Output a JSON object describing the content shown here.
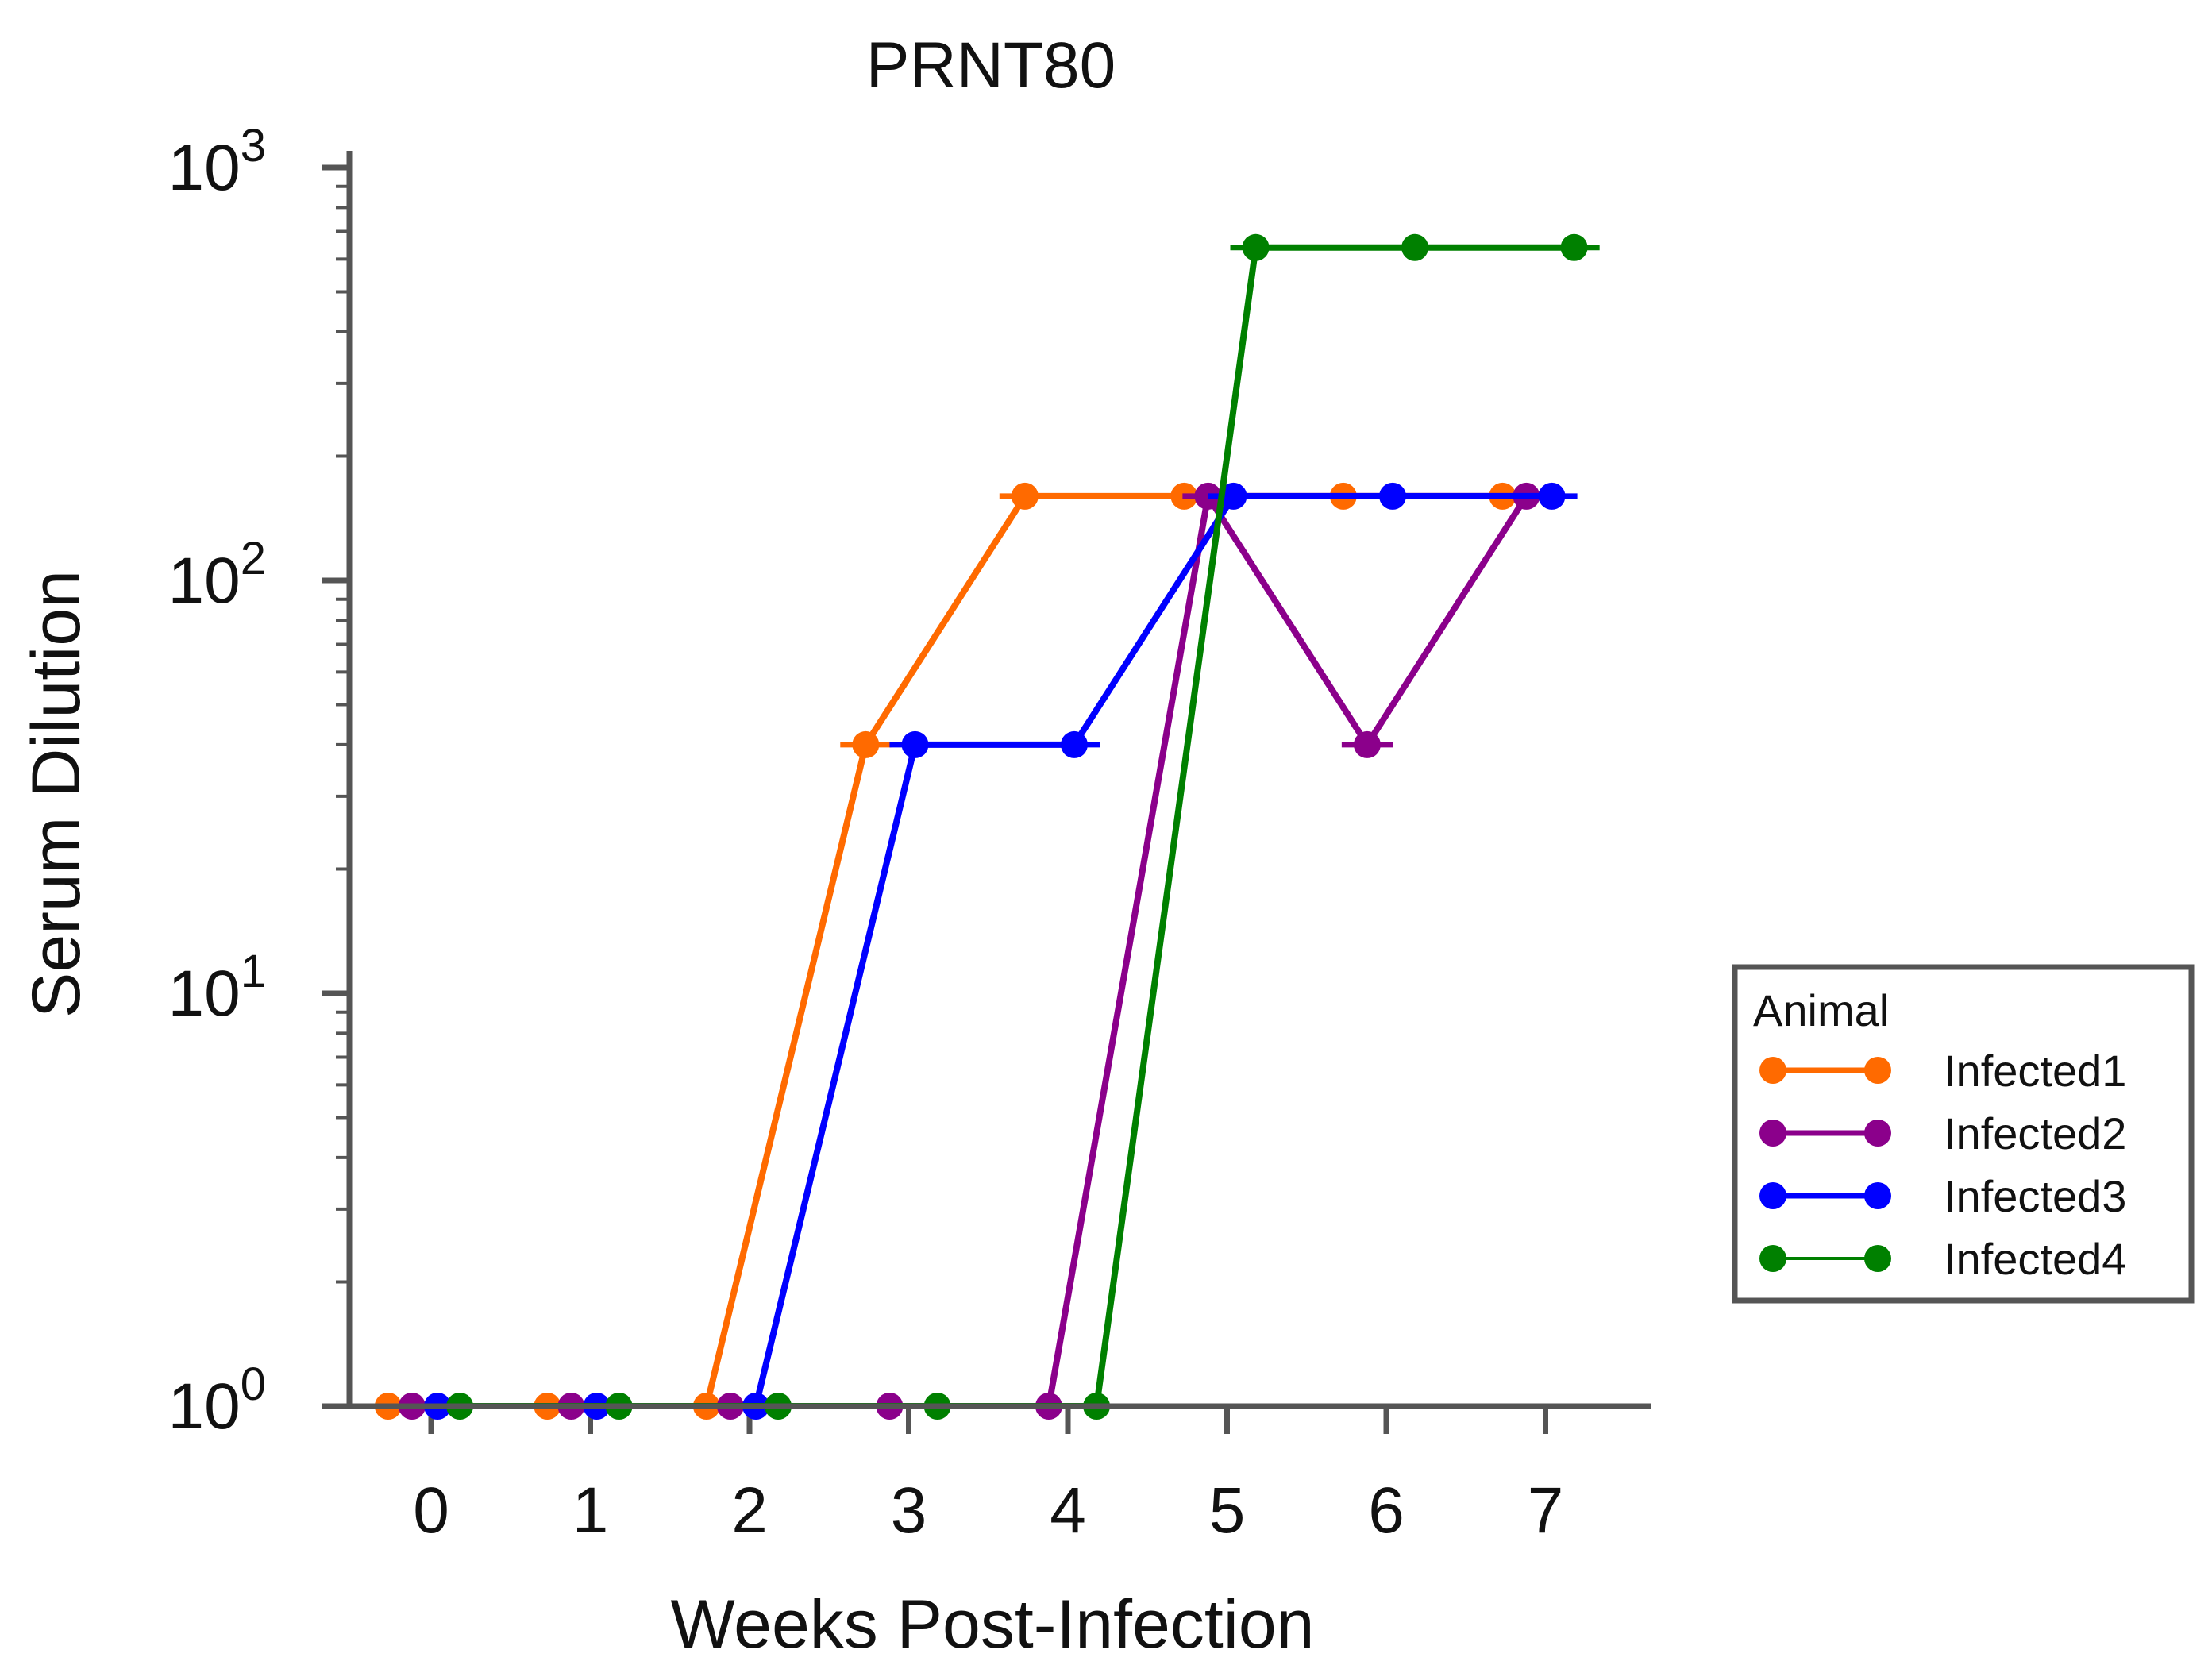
{
  "chart_data": {
    "type": "line",
    "title": "PRNT80",
    "xlabel": "Weeks Post-Infection",
    "ylabel": "Serum Dilution",
    "yscale": "log10",
    "ylim": [
      1,
      1000
    ],
    "xlim": [
      -0.5,
      7.7
    ],
    "x_ticks": [
      "0",
      "1",
      "2",
      "3",
      "4",
      "5",
      "6",
      "7"
    ],
    "y_ticks": [
      {
        "base": "10",
        "exp": "0",
        "value": 1
      },
      {
        "base": "10",
        "exp": "1",
        "value": 10
      },
      {
        "base": "10",
        "exp": "2",
        "value": 100
      },
      {
        "base": "10",
        "exp": "3",
        "value": 1000
      }
    ],
    "legend_title": "Animal",
    "legend_position": "right",
    "series": [
      {
        "name": "Infected1",
        "color": "#FF6A00",
        "x_offset": -0.27,
        "x": [
          0,
          1,
          2,
          3,
          4,
          5,
          6,
          7
        ],
        "values": [
          1,
          1,
          1,
          40,
          160,
          160,
          160,
          160
        ]
      },
      {
        "name": "Infected2",
        "color": "#8B008B",
        "x_offset": -0.12,
        "x": [
          0,
          1,
          2,
          3,
          4,
          5,
          6,
          7
        ],
        "values": [
          1,
          1,
          1,
          1,
          1,
          160,
          40,
          160
        ]
      },
      {
        "name": "Infected3",
        "color": "#0000FF",
        "x_offset": 0.04,
        "x": [
          0,
          1,
          2,
          3,
          4,
          5,
          6,
          7
        ],
        "values": [
          1,
          1,
          1,
          40,
          40,
          160,
          160,
          160
        ]
      },
      {
        "name": "Infected4",
        "color": "#008000",
        "x_offset": 0.18,
        "x": [
          0,
          1,
          2,
          3,
          4,
          5,
          6,
          7
        ],
        "values": [
          1,
          1,
          1,
          1,
          1,
          640,
          640,
          640
        ]
      }
    ]
  }
}
